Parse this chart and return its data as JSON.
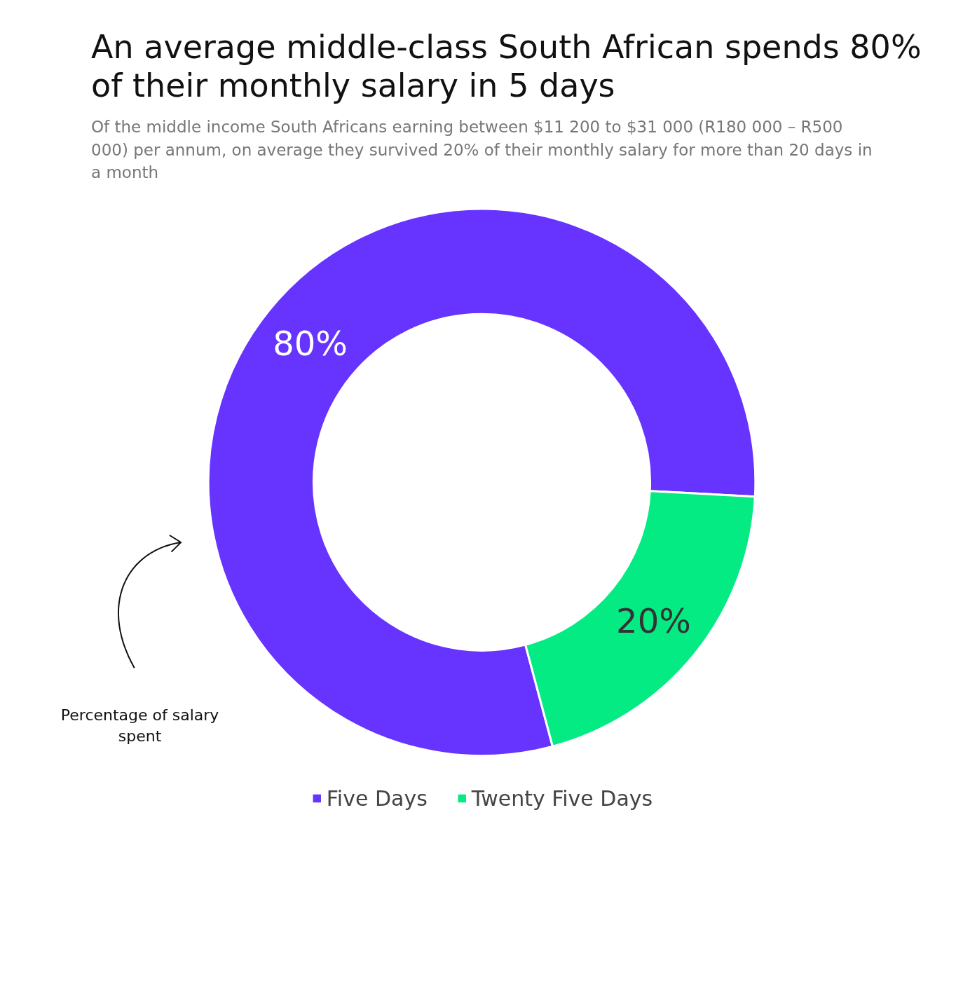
{
  "chart_data": {
    "type": "donut",
    "title": "An average middle-class South African spends 80% of their monthly salary in 5 days",
    "subtitle": "Of the middle income South Africans earning between $11 200 to $31 000  (R180 000 – R500 000) per annum, on average they survived  20% of their monthly salary for more than 20 days in a month",
    "categories": [
      "Five Days",
      "Twenty Five Days"
    ],
    "values": [
      80,
      20
    ],
    "colors": [
      "#6633ff",
      "#05eb84"
    ],
    "value_labels": [
      "80%",
      "20%"
    ],
    "legend": "bottom",
    "annotations": [
      "Percentage of salary spent"
    ]
  }
}
